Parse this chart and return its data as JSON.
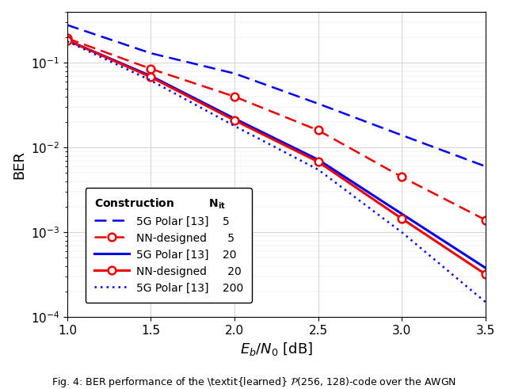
{
  "x": [
    1.0,
    1.5,
    2.0,
    2.5,
    3.0,
    3.5
  ],
  "5g_polar_5": [
    0.28,
    0.13,
    0.075,
    0.033,
    0.014,
    0.006
  ],
  "nn_designed_5": [
    0.195,
    0.085,
    0.04,
    0.016,
    0.0045,
    0.0014
  ],
  "5g_polar_20": [
    0.185,
    0.07,
    0.022,
    0.0072,
    0.00165,
    0.00038
  ],
  "nn_designed_20": [
    0.185,
    0.068,
    0.021,
    0.0068,
    0.00145,
    0.00032
  ],
  "5g_polar_200": [
    0.18,
    0.062,
    0.018,
    0.0055,
    0.001,
    0.00015
  ],
  "xlabel": "$E_b/N_0$ [dB]",
  "ylabel": "BER",
  "xlim": [
    1.0,
    3.5
  ],
  "ylim_low": 0.0001,
  "ylim_high": 0.4,
  "blue": "#0000EE",
  "red": "#EE0000",
  "legend_title": "Construction",
  "legend_nit": "N$_\\mathrm{it}$",
  "caption": "Fig. 4: BER performance of the \\textit{learned} $\\mathcal{P}$(256, 128)-code over the AWGN"
}
